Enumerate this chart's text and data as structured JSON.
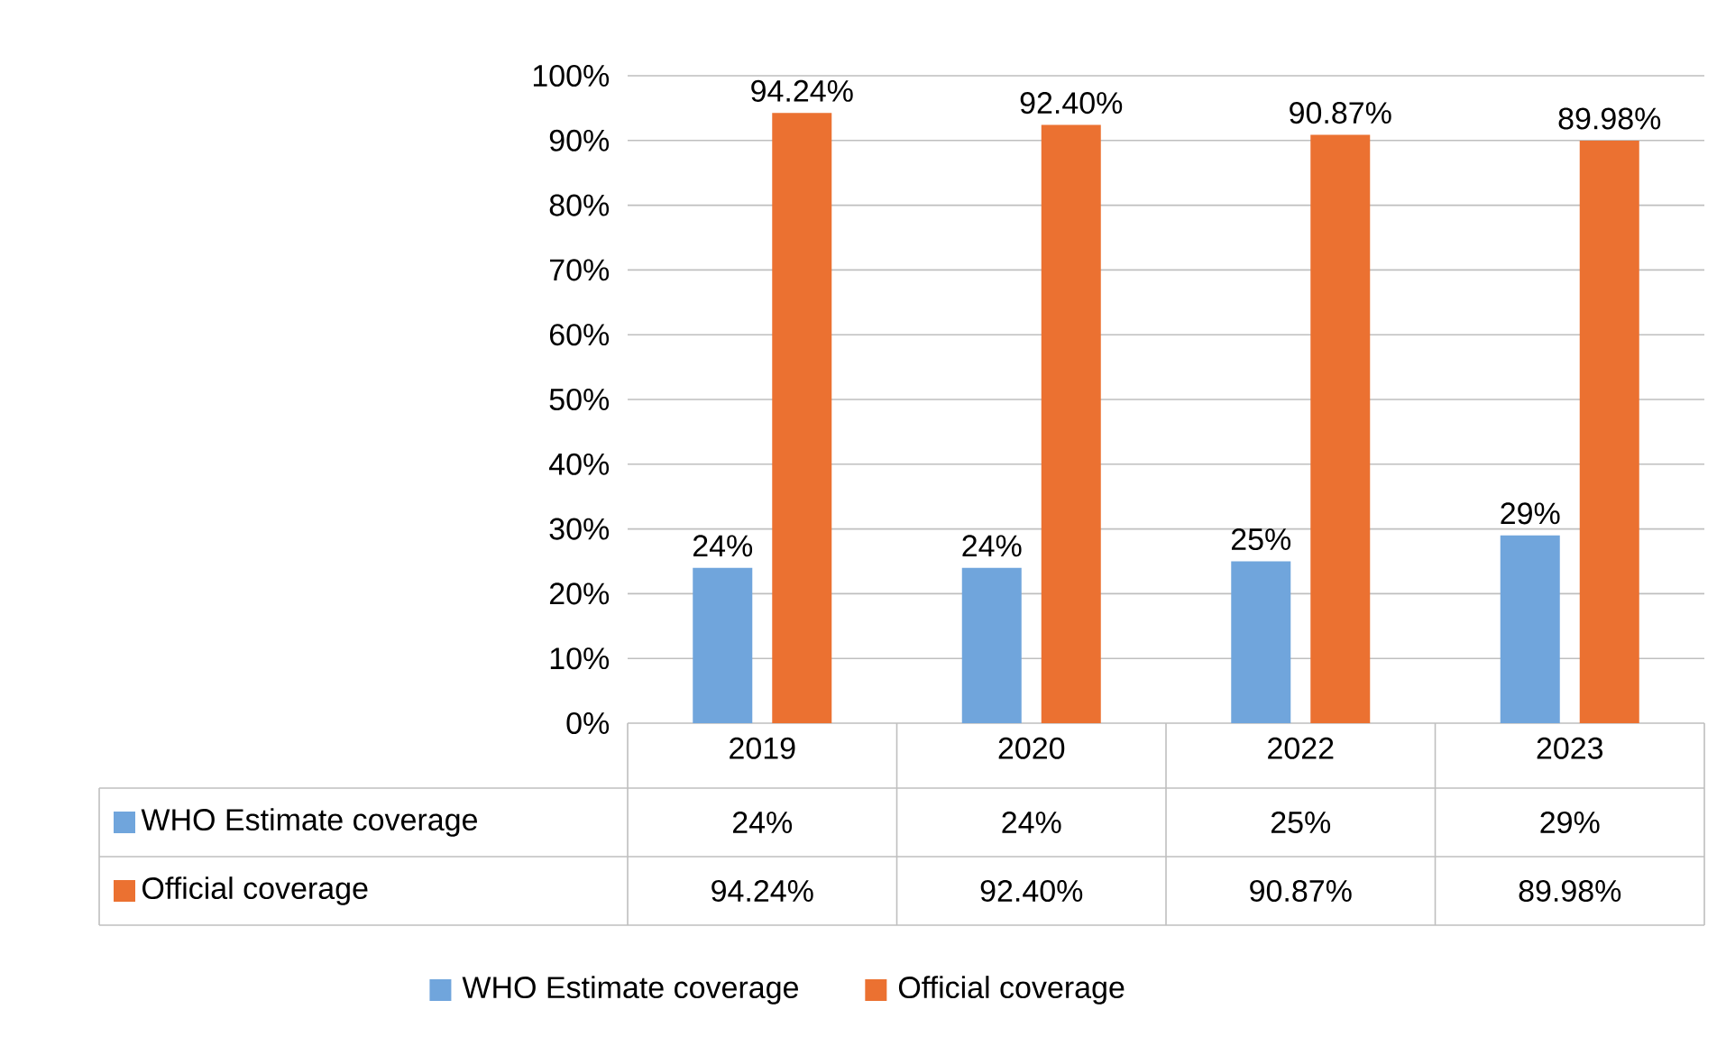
{
  "chart_data": {
    "type": "bar",
    "categories": [
      "2019",
      "2020",
      "2022",
      "2023"
    ],
    "series": [
      {
        "name": "WHO Estimate coverage",
        "color": "#70a5dc",
        "values": [
          24,
          24,
          25,
          29
        ],
        "value_labels": [
          "24%",
          "24%",
          "25%",
          "29%"
        ]
      },
      {
        "name": "Official coverage",
        "color": "#eb7131",
        "values": [
          94.24,
          92.4,
          90.87,
          89.98
        ],
        "value_labels": [
          "94.24%",
          "92.40%",
          "90.87%",
          "89.98%"
        ]
      }
    ],
    "ylim": [
      0,
      100
    ],
    "yticks": [
      {
        "value": 0,
        "label": "0%"
      },
      {
        "value": 10,
        "label": "10%"
      },
      {
        "value": 20,
        "label": "20%"
      },
      {
        "value": 30,
        "label": "30%"
      },
      {
        "value": 40,
        "label": "40%"
      },
      {
        "value": 50,
        "label": "50%"
      },
      {
        "value": 60,
        "label": "60%"
      },
      {
        "value": 70,
        "label": "70%"
      },
      {
        "value": 80,
        "label": "80%"
      },
      {
        "value": 90,
        "label": "90%"
      },
      {
        "value": 100,
        "label": "100%"
      }
    ],
    "grid": "y",
    "legend": "bottom"
  }
}
